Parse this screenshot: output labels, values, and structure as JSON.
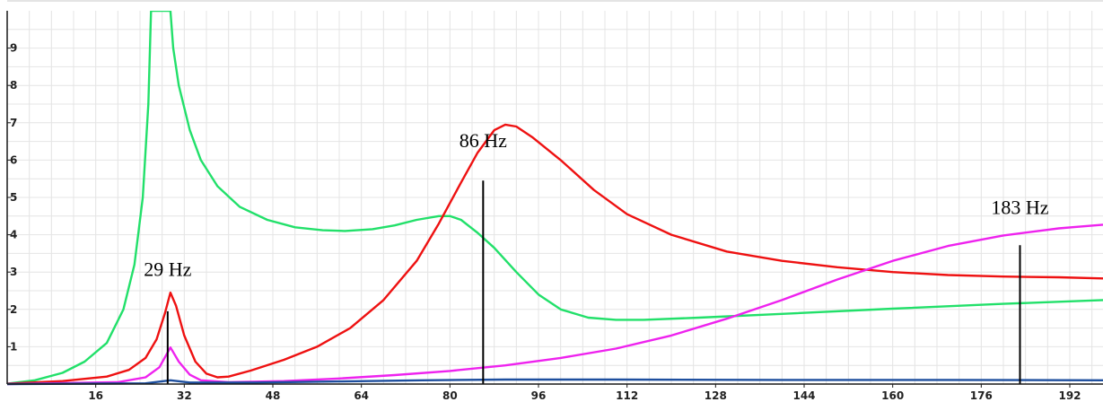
{
  "chart_data": {
    "type": "line",
    "title": "",
    "xlabel": "",
    "ylabel": "",
    "xlim": [
      0,
      198
    ],
    "ylim": [
      0,
      10
    ],
    "grid": true,
    "colors": {
      "background": "#ffffff",
      "grid": "#e4e4e4",
      "axis": "#1a1a1a",
      "annotation": "#000000"
    },
    "x_ticks": [
      16,
      32,
      48,
      64,
      80,
      96,
      112,
      128,
      144,
      160,
      176,
      192
    ],
    "y_ticks": [
      1,
      2,
      3,
      4,
      5,
      6,
      7,
      8,
      9
    ],
    "x_tick_labels": [
      "16",
      "32",
      "48",
      "64",
      "80",
      "96",
      "112",
      "128",
      "144",
      "160",
      "176",
      "192"
    ],
    "y_tick_labels": [
      "1",
      "2",
      "3",
      "4",
      "5",
      "6",
      "7",
      "8",
      "9"
    ],
    "series": [
      {
        "color": "#22e06a",
        "points": [
          [
            0,
            0.01
          ],
          [
            5,
            0.1
          ],
          [
            10,
            0.3
          ],
          [
            14,
            0.6
          ],
          [
            18,
            1.1
          ],
          [
            21,
            2.0
          ],
          [
            23,
            3.2
          ],
          [
            24.5,
            5.0
          ],
          [
            25.5,
            7.5
          ],
          [
            26,
            10.0
          ],
          [
            29.5,
            10.0
          ],
          [
            30,
            9.0
          ],
          [
            31,
            8.0
          ],
          [
            33,
            6.8
          ],
          [
            35,
            6.0
          ],
          [
            38,
            5.3
          ],
          [
            42,
            4.75
          ],
          [
            47,
            4.4
          ],
          [
            52,
            4.2
          ],
          [
            57,
            4.12
          ],
          [
            61,
            4.1
          ],
          [
            66,
            4.15
          ],
          [
            70,
            4.25
          ],
          [
            74,
            4.4
          ],
          [
            78,
            4.5
          ],
          [
            80,
            4.5
          ],
          [
            82,
            4.4
          ],
          [
            85,
            4.05
          ],
          [
            88,
            3.65
          ],
          [
            92,
            3.0
          ],
          [
            96,
            2.4
          ],
          [
            100,
            2.0
          ],
          [
            105,
            1.78
          ],
          [
            110,
            1.72
          ],
          [
            115,
            1.72
          ],
          [
            125,
            1.78
          ],
          [
            140,
            1.88
          ],
          [
            160,
            2.02
          ],
          [
            180,
            2.15
          ],
          [
            198,
            2.25
          ]
        ]
      },
      {
        "color": "#ee1111",
        "points": [
          [
            0,
            0.01
          ],
          [
            10,
            0.08
          ],
          [
            18,
            0.2
          ],
          [
            22,
            0.38
          ],
          [
            25,
            0.7
          ],
          [
            27,
            1.2
          ],
          [
            28.5,
            1.9
          ],
          [
            29.5,
            2.45
          ],
          [
            30.5,
            2.1
          ],
          [
            32,
            1.3
          ],
          [
            34,
            0.6
          ],
          [
            36,
            0.28
          ],
          [
            38,
            0.18
          ],
          [
            40,
            0.2
          ],
          [
            44,
            0.36
          ],
          [
            50,
            0.65
          ],
          [
            56,
            1.0
          ],
          [
            62,
            1.5
          ],
          [
            68,
            2.25
          ],
          [
            74,
            3.3
          ],
          [
            78,
            4.3
          ],
          [
            82,
            5.4
          ],
          [
            85,
            6.2
          ],
          [
            88,
            6.8
          ],
          [
            90,
            6.95
          ],
          [
            92,
            6.9
          ],
          [
            95,
            6.6
          ],
          [
            100,
            6.0
          ],
          [
            106,
            5.2
          ],
          [
            112,
            4.55
          ],
          [
            120,
            4.0
          ],
          [
            130,
            3.55
          ],
          [
            140,
            3.3
          ],
          [
            150,
            3.13
          ],
          [
            160,
            3.0
          ],
          [
            170,
            2.92
          ],
          [
            180,
            2.88
          ],
          [
            190,
            2.86
          ],
          [
            198,
            2.83
          ]
        ]
      },
      {
        "color": "#ee22ee",
        "points": [
          [
            0,
            0.0
          ],
          [
            20,
            0.05
          ],
          [
            25,
            0.18
          ],
          [
            27.5,
            0.45
          ],
          [
            29.5,
            0.98
          ],
          [
            31,
            0.6
          ],
          [
            33,
            0.25
          ],
          [
            35,
            0.1
          ],
          [
            40,
            0.05
          ],
          [
            50,
            0.08
          ],
          [
            60,
            0.15
          ],
          [
            70,
            0.24
          ],
          [
            80,
            0.35
          ],
          [
            90,
            0.5
          ],
          [
            100,
            0.7
          ],
          [
            110,
            0.95
          ],
          [
            120,
            1.3
          ],
          [
            130,
            1.75
          ],
          [
            140,
            2.25
          ],
          [
            150,
            2.8
          ],
          [
            160,
            3.3
          ],
          [
            170,
            3.7
          ],
          [
            180,
            3.98
          ],
          [
            190,
            4.17
          ],
          [
            198,
            4.27
          ]
        ]
      },
      {
        "color": "#1e4f9e",
        "points": [
          [
            0,
            0.0
          ],
          [
            25,
            0.02
          ],
          [
            29.5,
            0.1
          ],
          [
            33,
            0.04
          ],
          [
            45,
            0.04
          ],
          [
            60,
            0.07
          ],
          [
            75,
            0.1
          ],
          [
            90,
            0.12
          ],
          [
            110,
            0.12
          ],
          [
            140,
            0.11
          ],
          [
            170,
            0.11
          ],
          [
            198,
            0.1
          ]
        ]
      }
    ],
    "annotations": [
      {
        "label": "29 Hz",
        "x": 29,
        "y_bottom": 0.0,
        "y_top": 1.95,
        "label_y": 2.9
      },
      {
        "label": "86 Hz",
        "x": 86,
        "y_bottom": 0.0,
        "y_top": 5.45,
        "label_y": 6.35
      },
      {
        "label": "183 Hz",
        "x": 183,
        "y_bottom": 0.0,
        "y_top": 3.72,
        "label_y": 4.55
      }
    ]
  }
}
